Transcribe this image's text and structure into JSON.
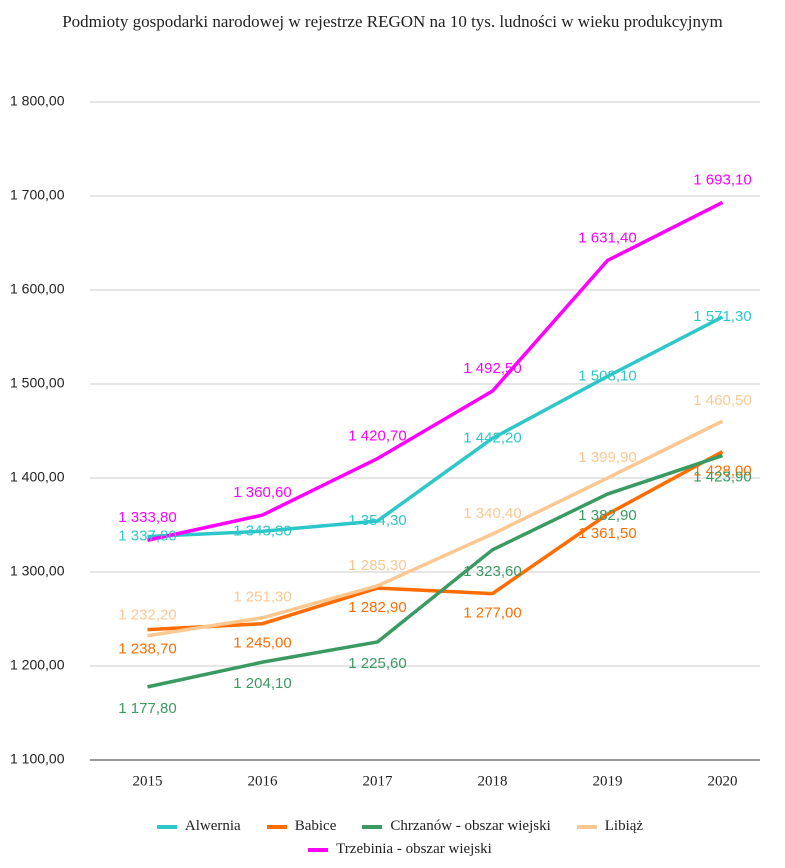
{
  "chart_data": {
    "type": "line",
    "title": "Podmioty gospodarki narodowej w rejestrze REGON na 10 tys. ludności w wieku produkcyjnym",
    "categories": [
      "2015",
      "2016",
      "2017",
      "2018",
      "2019",
      "2020"
    ],
    "series": [
      {
        "name": "Alwernia",
        "color": "#2ec7c9",
        "values": [
          1337.8,
          1343.3,
          1354.3,
          1442.2,
          1508.1,
          1571.3
        ],
        "value_labels": [
          "1 337,80",
          "1 343,30",
          "1 354,30",
          "1 442,20",
          "1 508,10",
          "1 571,30"
        ]
      },
      {
        "name": "Babice",
        "color": "#ff6d01",
        "values": [
          1238.7,
          1245.0,
          1282.9,
          1277.0,
          1361.5,
          1428.0
        ],
        "value_labels": [
          "1 238,70",
          "1 245,00",
          "1 282,90",
          "1 277,00",
          "1 361,50",
          "1 428,00"
        ]
      },
      {
        "name": "Chrzanów - obszar wiejski",
        "color": "#3a9a62",
        "values": [
          1177.8,
          1204.1,
          1225.6,
          1323.6,
          1382.9,
          1423.9
        ],
        "value_labels": [
          "1 177,80",
          "1 204,10",
          "1 225,60",
          "1 323,60",
          "1 382,90",
          "1 423,90"
        ]
      },
      {
        "name": "Libiąż",
        "color": "#fcc891",
        "values": [
          1232.2,
          1251.3,
          1285.3,
          1340.4,
          1399.9,
          1460.5
        ],
        "value_labels": [
          "1 232,20",
          "1 251,30",
          "1 285,30",
          "1 340,40",
          "1 399,90",
          "1 460,50"
        ]
      },
      {
        "name": "Trzebinia - obszar wiejski",
        "color": "#ff00ff",
        "values": [
          1333.8,
          1360.6,
          1420.7,
          1492.5,
          1631.4,
          1693.1
        ],
        "value_labels": [
          "1 333,80",
          "1 360,60",
          "1 420,70",
          "1 492,50",
          "1 631,40",
          "1 693,10"
        ]
      }
    ],
    "ylim": [
      1100,
      1800
    ],
    "yticks": [
      {
        "value": 1100,
        "label": "1 100,00"
      },
      {
        "value": 1200,
        "label": "1 200,00"
      },
      {
        "value": 1300,
        "label": "1 300,00"
      },
      {
        "value": 1400,
        "label": "1 400,00"
      },
      {
        "value": 1500,
        "label": "1 500,00"
      },
      {
        "value": 1600,
        "label": "1 600,00"
      },
      {
        "value": 1700,
        "label": "1 700,00"
      },
      {
        "value": 1800,
        "label": "1 800,00"
      }
    ],
    "grid": true,
    "legend": "bottom"
  }
}
